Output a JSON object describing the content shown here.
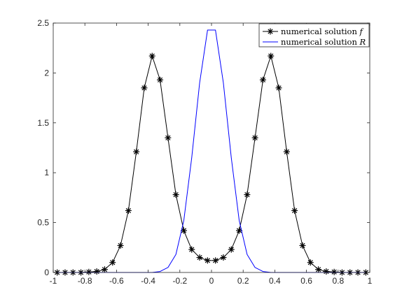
{
  "chart_data": {
    "type": "line",
    "xlim": [
      -1,
      1
    ],
    "ylim": [
      0,
      2.5
    ],
    "xticks": [
      -1,
      -0.8,
      -0.6,
      -0.4,
      -0.2,
      0,
      0.2,
      0.4,
      0.6,
      0.8,
      1
    ],
    "xtick_labels": [
      "-1",
      "-0.8",
      "-0.6",
      "-0.4",
      "-0.2",
      "0",
      "0.2",
      "0.4",
      "0.6",
      "0.8",
      "1"
    ],
    "yticks": [
      0,
      0.5,
      1,
      1.5,
      2,
      2.5
    ],
    "ytick_labels": [
      "0",
      "0.5",
      "1",
      "1.5",
      "2",
      "2.5"
    ],
    "grid": false,
    "legend_position": "top-right",
    "series": [
      {
        "name_text": "numerical solution ",
        "name_math": "f",
        "color": "#000000",
        "marker": "asterisk",
        "x": [
          -0.975,
          -0.925,
          -0.875,
          -0.825,
          -0.775,
          -0.725,
          -0.675,
          -0.625,
          -0.575,
          -0.525,
          -0.475,
          -0.425,
          -0.375,
          -0.325,
          -0.275,
          -0.225,
          -0.175,
          -0.125,
          -0.075,
          -0.025,
          0.025,
          0.075,
          0.125,
          0.175,
          0.225,
          0.275,
          0.325,
          0.375,
          0.425,
          0.475,
          0.525,
          0.575,
          0.625,
          0.675,
          0.725,
          0.775,
          0.825,
          0.875,
          0.925,
          0.975
        ],
        "y": [
          0.0,
          0.0,
          0.0,
          0.0,
          0.005,
          0.01,
          0.03,
          0.1,
          0.27,
          0.62,
          1.21,
          1.85,
          2.17,
          1.93,
          1.35,
          0.78,
          0.42,
          0.23,
          0.15,
          0.12,
          0.12,
          0.15,
          0.23,
          0.42,
          0.78,
          1.35,
          1.93,
          2.17,
          1.85,
          1.21,
          0.62,
          0.27,
          0.1,
          0.03,
          0.01,
          0.005,
          0.0,
          0.0,
          0.0,
          0.0
        ]
      },
      {
        "name_text": "numerical solution ",
        "name_math": "R",
        "color": "#0000ff",
        "marker": "none",
        "x": [
          -0.975,
          -0.925,
          -0.875,
          -0.825,
          -0.775,
          -0.725,
          -0.675,
          -0.625,
          -0.575,
          -0.525,
          -0.475,
          -0.425,
          -0.375,
          -0.325,
          -0.275,
          -0.225,
          -0.175,
          -0.125,
          -0.075,
          -0.025,
          0.025,
          0.075,
          0.125,
          0.175,
          0.225,
          0.275,
          0.325,
          0.375,
          0.425,
          0.475,
          0.525,
          0.575,
          0.625,
          0.675,
          0.725,
          0.775,
          0.825,
          0.875,
          0.925,
          0.975
        ],
        "y": [
          0,
          0,
          0,
          0,
          0,
          0,
          0,
          0,
          0,
          0,
          0,
          0,
          0,
          0.01,
          0.05,
          0.18,
          0.52,
          1.15,
          1.9,
          2.43,
          2.43,
          1.9,
          1.15,
          0.52,
          0.18,
          0.05,
          0.01,
          0,
          0,
          0,
          0,
          0,
          0,
          0,
          0,
          0,
          0,
          0,
          0,
          0
        ]
      }
    ]
  }
}
